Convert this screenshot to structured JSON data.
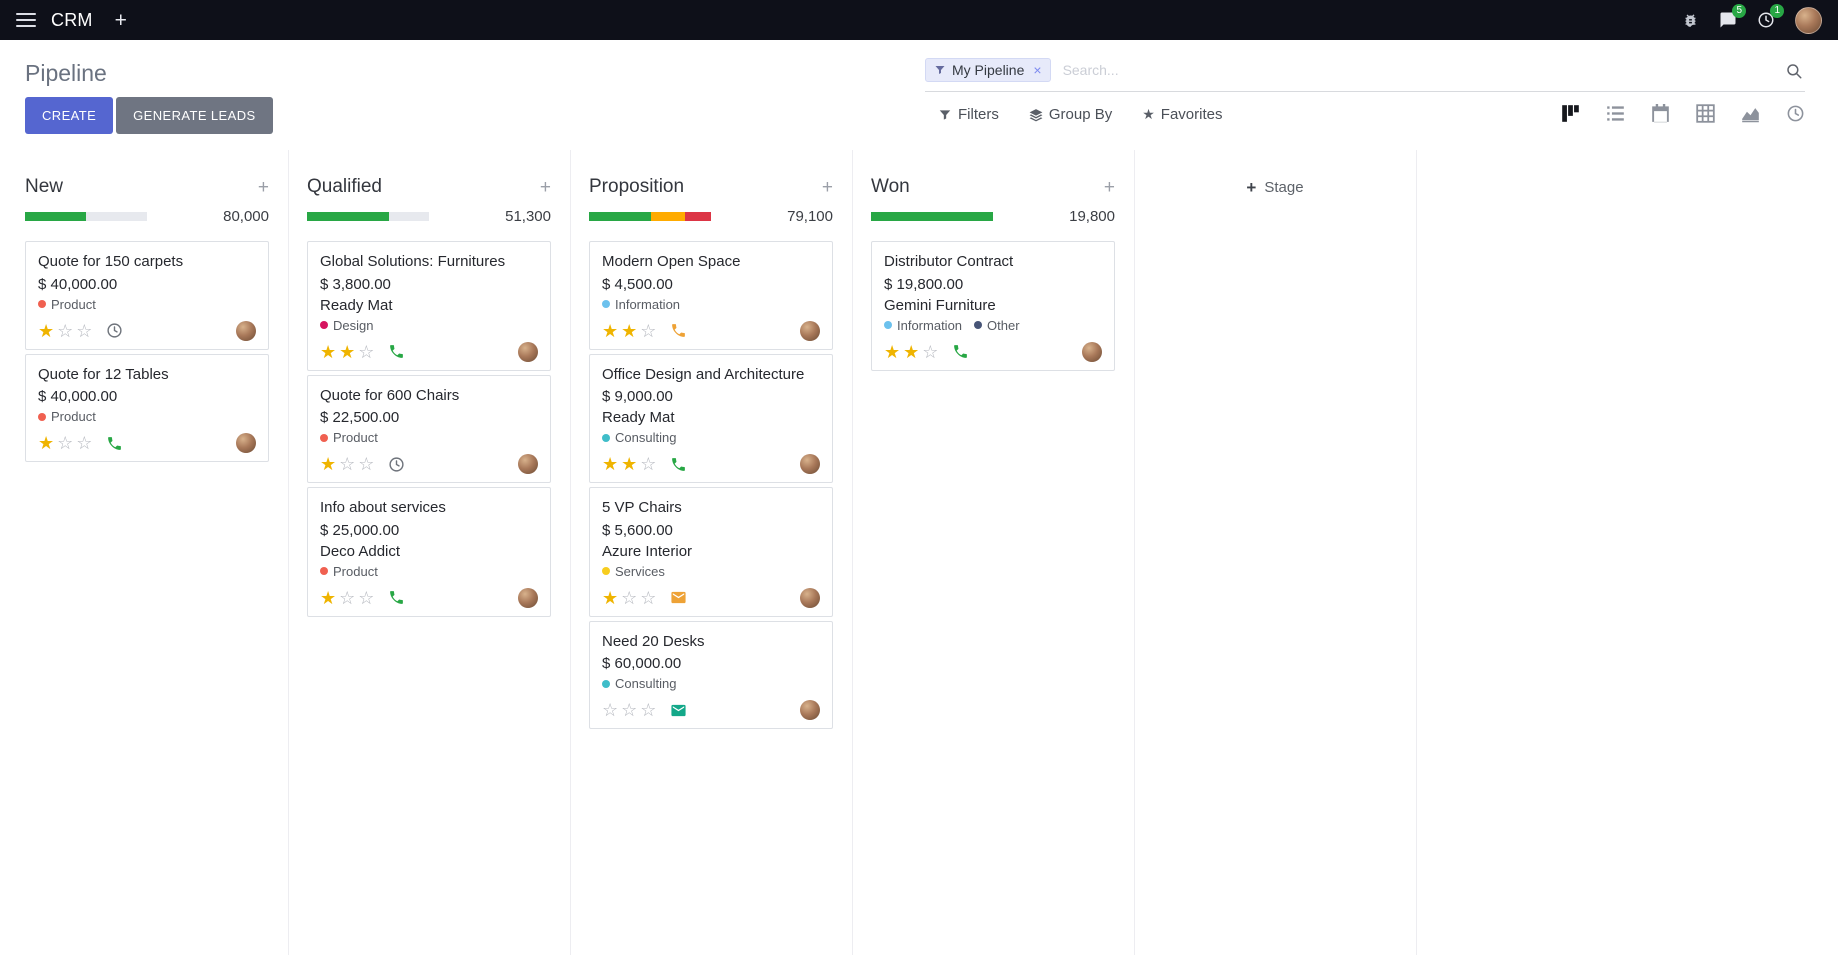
{
  "app": {
    "name": "CRM",
    "badges": {
      "messages": "5",
      "activities": "1"
    }
  },
  "control_panel": {
    "breadcrumb": "Pipeline",
    "buttons": {
      "create": "CREATE",
      "generate_leads": "GENERATE LEADS"
    },
    "search": {
      "facet_label": "My Pipeline",
      "placeholder": "Search..."
    },
    "menus": {
      "filters": "Filters",
      "group_by": "Group By",
      "favorites": "Favorites"
    },
    "view_switcher": {
      "views": [
        "kanban",
        "list",
        "calendar",
        "pivot",
        "graph",
        "activity"
      ],
      "active": "kanban"
    }
  },
  "theme": {
    "navbar_bg": "#0e1019",
    "primary_button": "#5566d0",
    "secondary_button": "#6f7582",
    "badge_green": "#28a745",
    "star_gold": "#efb400",
    "progress_success": "#28a745",
    "progress_warning": "#ffab00",
    "progress_danger": "#dc3545",
    "progress_track": "#e7e9ee"
  },
  "board": {
    "add_stage_label": "Stage",
    "columns": [
      {
        "name": "New",
        "total": "80,000",
        "progress": [
          {
            "color": "#28a745",
            "pct": 50
          }
        ],
        "cards": [
          {
            "title": "Quote for 150 carpets",
            "amount": "$ 40,000.00",
            "partner": "",
            "tags": [
              {
                "label": "Product",
                "color": "#f06050"
              }
            ],
            "stars": 1,
            "activity": {
              "type": "clock",
              "color": "#6e737b"
            }
          },
          {
            "title": "Quote for 12 Tables",
            "amount": "$ 40,000.00",
            "partner": "",
            "tags": [
              {
                "label": "Product",
                "color": "#f06050"
              }
            ],
            "stars": 1,
            "activity": {
              "type": "phone",
              "color": "#28a745"
            }
          }
        ]
      },
      {
        "name": "Qualified",
        "total": "51,300",
        "progress": [
          {
            "color": "#28a745",
            "pct": 67
          }
        ],
        "cards": [
          {
            "title": "Global Solutions: Furnitures",
            "amount": "$ 3,800.00",
            "partner": "Ready Mat",
            "tags": [
              {
                "label": "Design",
                "color": "#d6145f"
              }
            ],
            "stars": 2,
            "activity": {
              "type": "phone",
              "color": "#28a745"
            }
          },
          {
            "title": "Quote for 600 Chairs",
            "amount": "$ 22,500.00",
            "partner": "",
            "tags": [
              {
                "label": "Product",
                "color": "#f06050"
              }
            ],
            "stars": 1,
            "activity": {
              "type": "clock",
              "color": "#6e737b"
            }
          },
          {
            "title": "Info about services",
            "amount": "$ 25,000.00",
            "partner": "Deco Addict",
            "tags": [
              {
                "label": "Product",
                "color": "#f06050"
              }
            ],
            "stars": 1,
            "activity": {
              "type": "phone",
              "color": "#28a745"
            }
          }
        ]
      },
      {
        "name": "Proposition",
        "total": "79,100",
        "progress": [
          {
            "color": "#28a745",
            "pct": 51
          },
          {
            "color": "#ffab00",
            "pct": 28
          },
          {
            "color": "#dc3545",
            "pct": 21
          }
        ],
        "cards": [
          {
            "title": "Modern Open Space",
            "amount": "$ 4,500.00",
            "partner": "",
            "tags": [
              {
                "label": "Information",
                "color": "#6cc1ed"
              }
            ],
            "stars": 2,
            "activity": {
              "type": "phone",
              "color": "#eea236"
            }
          },
          {
            "title": "Office Design and Architecture",
            "amount": "$ 9,000.00",
            "partner": "Ready Mat",
            "tags": [
              {
                "label": "Consulting",
                "color": "#3fbdc9"
              }
            ],
            "stars": 2,
            "activity": {
              "type": "phone",
              "color": "#28a745"
            }
          },
          {
            "title": "5 VP Chairs",
            "amount": "$ 5,600.00",
            "partner": "Azure Interior",
            "tags": [
              {
                "label": "Services",
                "color": "#f7cd1f"
              }
            ],
            "stars": 1,
            "activity": {
              "type": "envelope",
              "color": "#eea236"
            }
          },
          {
            "title": "Need 20 Desks",
            "amount": "$ 60,000.00",
            "partner": "",
            "tags": [
              {
                "label": "Consulting",
                "color": "#3fbdc9"
              }
            ],
            "stars": 0,
            "activity": {
              "type": "envelope",
              "color": "#13a889"
            }
          }
        ]
      },
      {
        "name": "Won",
        "total": "19,800",
        "progress": [
          {
            "color": "#28a745",
            "pct": 100
          }
        ],
        "cards": [
          {
            "title": "Distributor Contract",
            "amount": "$ 19,800.00",
            "partner": "Gemini Furniture",
            "tags": [
              {
                "label": "Information",
                "color": "#6cc1ed"
              },
              {
                "label": "Other",
                "color": "#475577"
              }
            ],
            "stars": 2,
            "activity": {
              "type": "phone",
              "color": "#28a745"
            }
          }
        ]
      }
    ]
  }
}
